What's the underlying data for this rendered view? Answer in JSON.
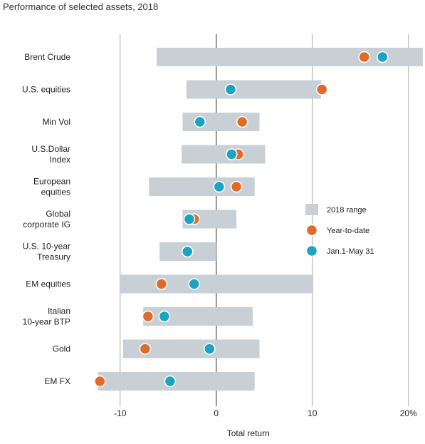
{
  "chart_data": {
    "type": "range-dot",
    "title": "Performance of selected assets, 2018",
    "xlabel": "Total return",
    "xlim": [
      -12.5,
      21.5
    ],
    "xticks": [
      -10,
      0,
      10,
      20
    ],
    "xtick_labels": [
      "-10",
      "0",
      "10",
      "20%"
    ],
    "categories": [
      [
        "Brent Crude"
      ],
      [
        "U.S. equities"
      ],
      [
        "Min Vol"
      ],
      [
        "U.S.Dollar",
        "Index"
      ],
      [
        "European",
        "equities"
      ],
      [
        "Global",
        "corporate IG"
      ],
      [
        "U.S. 10-year",
        "Treasury"
      ],
      [
        "EM equities"
      ],
      [
        "Italian",
        "10-year BTP"
      ],
      [
        "Gold"
      ],
      [
        "EM FX"
      ]
    ],
    "series": [
      {
        "name": "2018 range",
        "kind": "range",
        "color": "#c8d0d6",
        "values": [
          [
            -6.2,
            21.5
          ],
          [
            -3.1,
            10.9
          ],
          [
            -3.5,
            4.5
          ],
          [
            -3.6,
            5.1
          ],
          [
            -7.0,
            4.0
          ],
          [
            -3.5,
            2.1
          ],
          [
            -5.9,
            0.0
          ],
          [
            -10.0,
            10.1
          ],
          [
            -7.6,
            3.8
          ],
          [
            -9.7,
            4.5
          ],
          [
            -12.3,
            4.0
          ]
        ]
      },
      {
        "name": "Year-to-date",
        "kind": "dot",
        "color": "#e06a2a",
        "values": [
          15.4,
          11.0,
          2.7,
          2.3,
          2.1,
          -2.3,
          -3.0,
          -5.7,
          -7.1,
          -7.4,
          -12.1
        ]
      },
      {
        "name": "Jan.1-May 31",
        "kind": "dot",
        "color": "#1ba3c1",
        "values": [
          17.3,
          1.5,
          -1.7,
          1.6,
          0.3,
          -2.8,
          -3.0,
          -2.3,
          -5.4,
          -0.7,
          -4.8
        ]
      }
    ],
    "grid": "vertical gridlines at ticks",
    "legend_position": "right"
  }
}
